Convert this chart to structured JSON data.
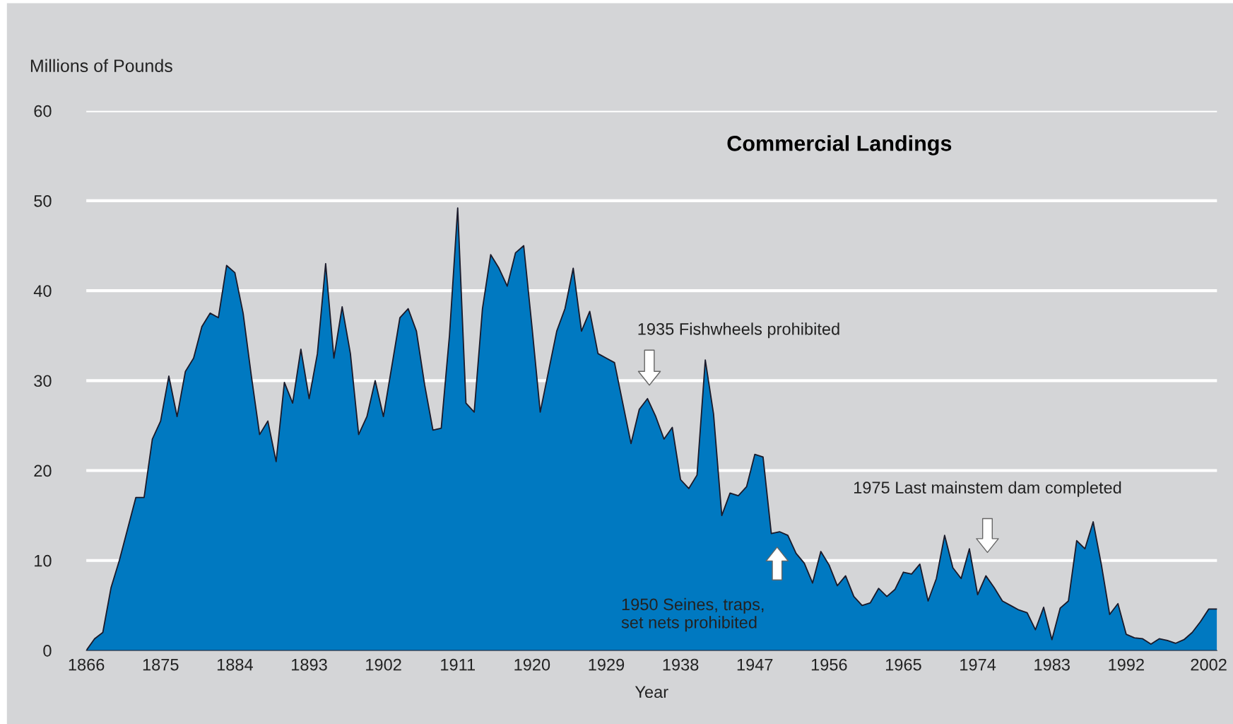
{
  "chart_data": {
    "type": "area",
    "title": "Commercial Landings",
    "xlabel": "Year",
    "ylabel": "Millions of Pounds",
    "x": [
      1866,
      1867,
      1868,
      1869,
      1870,
      1871,
      1872,
      1873,
      1874,
      1875,
      1876,
      1877,
      1878,
      1879,
      1880,
      1881,
      1882,
      1883,
      1884,
      1885,
      1886,
      1887,
      1888,
      1889,
      1890,
      1891,
      1892,
      1893,
      1894,
      1895,
      1896,
      1897,
      1898,
      1899,
      1900,
      1901,
      1902,
      1903,
      1904,
      1905,
      1906,
      1907,
      1908,
      1909,
      1910,
      1911,
      1912,
      1913,
      1914,
      1915,
      1916,
      1917,
      1918,
      1919,
      1920,
      1921,
      1922,
      1923,
      1924,
      1925,
      1926,
      1927,
      1928,
      1929,
      1930,
      1931,
      1932,
      1933,
      1934,
      1935,
      1936,
      1937,
      1938,
      1939,
      1940,
      1941,
      1942,
      1943,
      1944,
      1945,
      1946,
      1947,
      1948,
      1949,
      1950,
      1951,
      1952,
      1953,
      1954,
      1955,
      1956,
      1957,
      1958,
      1959,
      1960,
      1961,
      1962,
      1963,
      1964,
      1965,
      1966,
      1967,
      1968,
      1969,
      1970,
      1971,
      1972,
      1973,
      1974,
      1975,
      1976,
      1977,
      1978,
      1979,
      1980,
      1981,
      1982,
      1983,
      1984,
      1985,
      1986,
      1987,
      1988,
      1989,
      1990,
      1991,
      1992,
      1993,
      1994,
      1995,
      1996,
      1997,
      1998,
      1999,
      2000,
      2001,
      2002,
      2003
    ],
    "series": [
      {
        "color": "#0079c1",
        "values": [
          0,
          1.3,
          2,
          7,
          10,
          13.5,
          17,
          17,
          23.5,
          25.5,
          30.5,
          26,
          31,
          32.5,
          36,
          37.5,
          37,
          42.8,
          42,
          37.5,
          30.5,
          24,
          25.5,
          21,
          29.8,
          27.5,
          33.5,
          28,
          33,
          43,
          32.5,
          38.2,
          33,
          24,
          26,
          30,
          26,
          31.5,
          37,
          38,
          35.5,
          29.5,
          24.5,
          24.7,
          35,
          49.2,
          27.5,
          26.5,
          38,
          44,
          42.5,
          40.5,
          44.2,
          45,
          36,
          26.5,
          31,
          35.5,
          38,
          42.5,
          35.5,
          37.7,
          33,
          32.5,
          32,
          27.5,
          23,
          26.8,
          28,
          26,
          23.5,
          24.8,
          19,
          18,
          19.5,
          32.3,
          26.3,
          15,
          17.5,
          17.2,
          18.2,
          21.8,
          21.5,
          13,
          13.2,
          12.8,
          10.8,
          9.7,
          7.5,
          11,
          9.5,
          7.2,
          8.3,
          6,
          5,
          5.3,
          6.9,
          6,
          6.8,
          8.7,
          8.5,
          9.6,
          5.5,
          8,
          12.8,
          9.2,
          8,
          11.3,
          6.2,
          8.3,
          7,
          5.5,
          5,
          4.5,
          4.2,
          2.3,
          4.8,
          1.2,
          4.7,
          5.5,
          12.2,
          11.3,
          14.3,
          9.5,
          4,
          5.2,
          1.8,
          1.4,
          1.3,
          0.7,
          1.3,
          1.1,
          0.8,
          1.2,
          2,
          3.2,
          4.6,
          4.6
        ]
      }
    ],
    "xlim": [
      1866,
      2003
    ],
    "xticks": [
      1866,
      1875,
      1884,
      1893,
      1902,
      1911,
      1920,
      1929,
      1938,
      1947,
      1956,
      1965,
      1974,
      1983,
      1992,
      2002
    ],
    "ylim": [
      0,
      60
    ],
    "yticks": [
      0,
      10,
      20,
      30,
      40,
      50,
      60
    ],
    "grid": "y",
    "legend": false,
    "annotations": [
      "1935 Fishwheels prohibited",
      "1950 Seines, traps,\nset nets prohibited",
      "1975 Last mainstem dam completed"
    ]
  }
}
